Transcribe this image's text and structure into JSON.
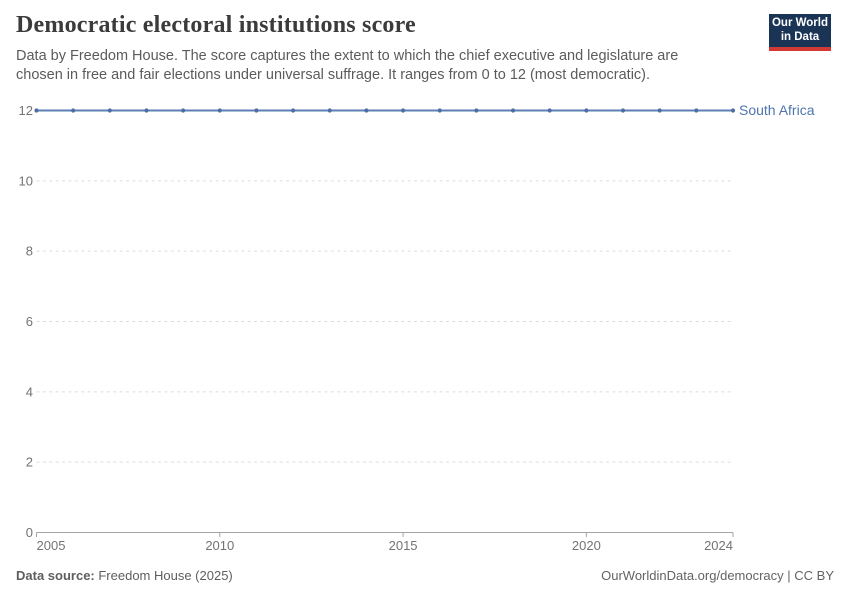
{
  "header": {
    "title": "Democratic electoral institutions score",
    "subtitle": "Data by Freedom House. The score captures the extent to which the chief executive and legislature are chosen in free and fair elections under universal suffrage. It ranges from 0 to 12 (most democratic).",
    "logo": {
      "line1": "Our World",
      "line2": "in Data"
    }
  },
  "footer": {
    "source_label": "Data source:",
    "source_value": " Freedom House (2025)",
    "link": "OurWorldinData.org/democracy | CC BY"
  },
  "colors": {
    "logo_bg": "#1a3455",
    "logo_stripe": "#d13a34",
    "grid": "#dcdcdc",
    "axis": "#a5a5a5",
    "axis_text": "#737373",
    "series_line": "#5e7fb5",
    "series_marker": "#4c6ea5",
    "series_label": "#4e75ad"
  },
  "chart_data": {
    "type": "line",
    "title": "Democratic electoral institutions score",
    "xlabel": "",
    "ylabel": "",
    "xlim": [
      2005,
      2024
    ],
    "ylim": [
      0,
      12
    ],
    "x_ticks": [
      2005,
      2010,
      2015,
      2020,
      2024
    ],
    "y_ticks": [
      0,
      2,
      4,
      6,
      8,
      10,
      12
    ],
    "grid": "horizontal-dashed",
    "legend_position": "right-of-line",
    "series": [
      {
        "name": "South Africa",
        "x": [
          2005,
          2006,
          2007,
          2008,
          2009,
          2010,
          2011,
          2012,
          2013,
          2014,
          2015,
          2016,
          2017,
          2018,
          2019,
          2020,
          2021,
          2022,
          2023,
          2024
        ],
        "values": [
          12,
          12,
          12,
          12,
          12,
          12,
          12,
          12,
          12,
          12,
          12,
          12,
          12,
          12,
          12,
          12,
          12,
          12,
          12,
          12
        ]
      }
    ]
  }
}
